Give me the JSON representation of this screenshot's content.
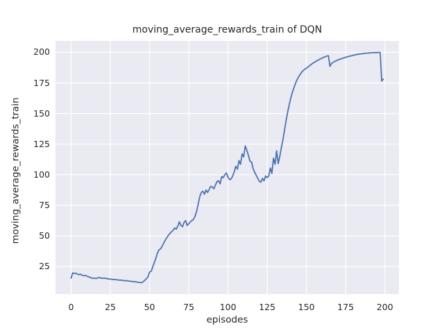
{
  "chart_data": {
    "type": "line",
    "title": "moving_average_rewards_train of DQN",
    "xlabel": "episodes",
    "ylabel": "moving_average_rewards_train",
    "x_ticks": [
      0,
      25,
      50,
      75,
      100,
      125,
      150,
      175,
      200
    ],
    "y_ticks": [
      25,
      50,
      75,
      100,
      125,
      150,
      175,
      200
    ],
    "xlim": [
      -9.95,
      208.95
    ],
    "ylim": [
      2.4,
      209.3
    ],
    "grid": true,
    "legend": "none",
    "style": {
      "line_color": "#4c72b0",
      "axes_bg": "#eaeaf2",
      "grid_color": "#ffffff",
      "text_color": "#262626",
      "line_width": 1.8
    },
    "series": [
      {
        "name": "DQN moving average rewards (train)",
        "x_is_episode_index": true,
        "values": [
          15.5,
          19.8,
          19.2,
          19.5,
          18.8,
          18.4,
          18.7,
          17.9,
          17.4,
          17.7,
          17.1,
          16.6,
          16.2,
          15.6,
          15.2,
          15.5,
          15.1,
          15.7,
          16.0,
          15.4,
          15.6,
          15.2,
          15.5,
          15.0,
          14.8,
          14.7,
          14.5,
          14.3,
          14.4,
          14.1,
          14.0,
          13.8,
          13.9,
          13.6,
          13.4,
          13.5,
          13.2,
          13.1,
          12.9,
          12.8,
          12.6,
          12.5,
          12.3,
          12.0,
          11.9,
          11.8,
          12.6,
          13.8,
          15.0,
          16.5,
          20.5,
          21.0,
          24.5,
          28.0,
          31.5,
          36.0,
          38.5,
          39.5,
          41.5,
          44.0,
          46.5,
          48.5,
          50.5,
          52.0,
          53.5,
          54.5,
          56.5,
          55.5,
          58.0,
          61.5,
          58.5,
          57.5,
          61.0,
          62.5,
          58.5,
          60.0,
          61.5,
          62.5,
          63.5,
          66.0,
          70.0,
          76.0,
          82.0,
          85.5,
          86.5,
          84.0,
          87.5,
          85.5,
          88.0,
          90.5,
          90.0,
          88.5,
          91.5,
          94.5,
          95.0,
          92.5,
          98.5,
          97.5,
          100.0,
          101.5,
          98.0,
          96.0,
          96.5,
          99.0,
          102.5,
          107.0,
          104.5,
          111.5,
          108.5,
          117.0,
          114.5,
          123.5,
          120.0,
          116.0,
          111.0,
          110.5,
          105.0,
          102.0,
          99.5,
          97.0,
          94.5,
          94.0,
          97.0,
          95.0,
          99.0,
          97.5,
          99.0,
          105.5,
          101.0,
          113.5,
          108.5,
          119.5,
          109.0,
          115.0,
          122.0,
          128.5,
          136.0,
          144.0,
          151.0,
          157.0,
          162.5,
          167.0,
          171.0,
          174.5,
          177.5,
          180.0,
          182.0,
          183.8,
          185.2,
          186.2,
          187.0,
          188.0,
          189.0,
          190.0,
          191.0,
          191.8,
          192.6,
          193.3,
          194.0,
          194.7,
          195.3,
          195.9,
          196.4,
          196.9,
          197.2,
          188.5,
          190.8,
          191.8,
          192.5,
          193.1,
          193.7,
          194.2,
          194.7,
          195.1,
          195.5,
          195.9,
          196.3,
          196.7,
          197.0,
          197.3,
          197.6,
          197.9,
          198.2,
          198.4,
          198.6,
          198.8,
          199.0,
          199.1,
          199.3,
          199.4,
          199.5,
          199.6,
          199.7,
          199.7,
          199.8,
          199.8,
          199.9,
          199.9,
          176.4,
          178.2
        ]
      }
    ]
  }
}
